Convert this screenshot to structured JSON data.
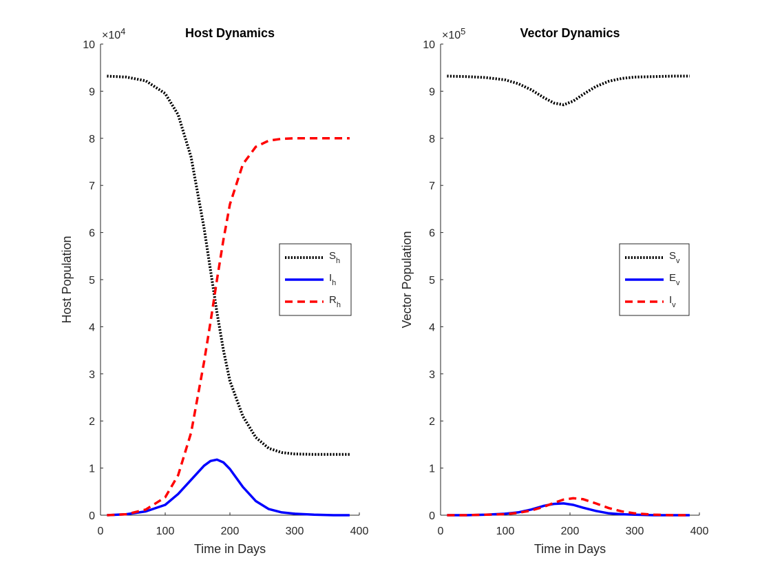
{
  "chart_data": [
    {
      "type": "line",
      "title": "Host Dynamics",
      "xlabel": "Time in Days",
      "ylabel": "Host Population",
      "exponent_label": "×10",
      "exponent_power": "4",
      "xlim": [
        0,
        400
      ],
      "ylim": [
        0,
        10
      ],
      "xticks": [
        0,
        100,
        200,
        300,
        400
      ],
      "yticks": [
        0,
        1,
        2,
        3,
        4,
        5,
        6,
        7,
        8,
        9,
        10
      ],
      "legend_position": "right",
      "series": [
        {
          "name": "S",
          "subscript": "h",
          "color": "#000000",
          "style": "dotted",
          "x": [
            10,
            40,
            70,
            100,
            120,
            140,
            160,
            170,
            180,
            190,
            200,
            220,
            240,
            260,
            280,
            300,
            330,
            360,
            385
          ],
          "y": [
            9.32,
            9.3,
            9.22,
            8.95,
            8.5,
            7.6,
            6.1,
            5.2,
            4.3,
            3.5,
            2.85,
            2.1,
            1.65,
            1.42,
            1.33,
            1.3,
            1.29,
            1.29,
            1.29
          ]
        },
        {
          "name": "I",
          "subscript": "h",
          "color": "#0000ff",
          "style": "solid",
          "x": [
            10,
            40,
            70,
            100,
            120,
            140,
            160,
            170,
            180,
            190,
            200,
            220,
            240,
            260,
            280,
            300,
            330,
            360,
            385
          ],
          "y": [
            0.0,
            0.02,
            0.08,
            0.22,
            0.45,
            0.75,
            1.05,
            1.15,
            1.18,
            1.12,
            0.98,
            0.6,
            0.3,
            0.13,
            0.06,
            0.03,
            0.01,
            0.0,
            0.0
          ]
        },
        {
          "name": "R",
          "subscript": "h",
          "color": "#ff0000",
          "style": "dashed",
          "x": [
            10,
            40,
            70,
            100,
            120,
            140,
            160,
            170,
            180,
            190,
            200,
            220,
            240,
            260,
            280,
            300,
            330,
            360,
            385
          ],
          "y": [
            0.0,
            0.02,
            0.12,
            0.38,
            0.85,
            1.75,
            3.25,
            4.1,
            5.0,
            5.85,
            6.6,
            7.45,
            7.82,
            7.95,
            7.99,
            8.0,
            8.0,
            8.0,
            8.0
          ]
        }
      ]
    },
    {
      "type": "line",
      "title": "Vector Dynamics",
      "xlabel": "Time in Days",
      "ylabel": "Vector Population",
      "exponent_label": "×10",
      "exponent_power": "5",
      "xlim": [
        0,
        400
      ],
      "ylim": [
        0,
        10
      ],
      "xticks": [
        0,
        100,
        200,
        300,
        400
      ],
      "yticks": [
        0,
        1,
        2,
        3,
        4,
        5,
        6,
        7,
        8,
        9,
        10
      ],
      "legend_position": "right",
      "series": [
        {
          "name": "S",
          "subscript": "v",
          "color": "#000000",
          "style": "dotted",
          "x": [
            10,
            40,
            70,
            100,
            120,
            140,
            160,
            175,
            190,
            205,
            220,
            240,
            260,
            280,
            300,
            330,
            360,
            385
          ],
          "y": [
            9.32,
            9.31,
            9.29,
            9.24,
            9.16,
            9.03,
            8.86,
            8.75,
            8.71,
            8.79,
            8.93,
            9.1,
            9.21,
            9.27,
            9.3,
            9.31,
            9.32,
            9.32
          ]
        },
        {
          "name": "E",
          "subscript": "v",
          "color": "#0000ff",
          "style": "solid",
          "x": [
            10,
            40,
            70,
            100,
            120,
            140,
            160,
            175,
            190,
            205,
            220,
            240,
            260,
            280,
            300,
            330,
            360,
            385
          ],
          "y": [
            0.0,
            0.0,
            0.01,
            0.03,
            0.06,
            0.12,
            0.2,
            0.24,
            0.25,
            0.22,
            0.16,
            0.09,
            0.04,
            0.02,
            0.01,
            0.0,
            0.0,
            0.0
          ]
        },
        {
          "name": "I",
          "subscript": "v",
          "color": "#ff0000",
          "style": "dashed",
          "x": [
            10,
            40,
            70,
            100,
            120,
            140,
            160,
            175,
            190,
            205,
            220,
            240,
            260,
            280,
            300,
            330,
            360,
            385
          ],
          "y": [
            0.0,
            0.0,
            0.01,
            0.02,
            0.05,
            0.1,
            0.18,
            0.26,
            0.33,
            0.36,
            0.34,
            0.25,
            0.15,
            0.08,
            0.04,
            0.01,
            0.0,
            0.0
          ]
        }
      ]
    }
  ]
}
